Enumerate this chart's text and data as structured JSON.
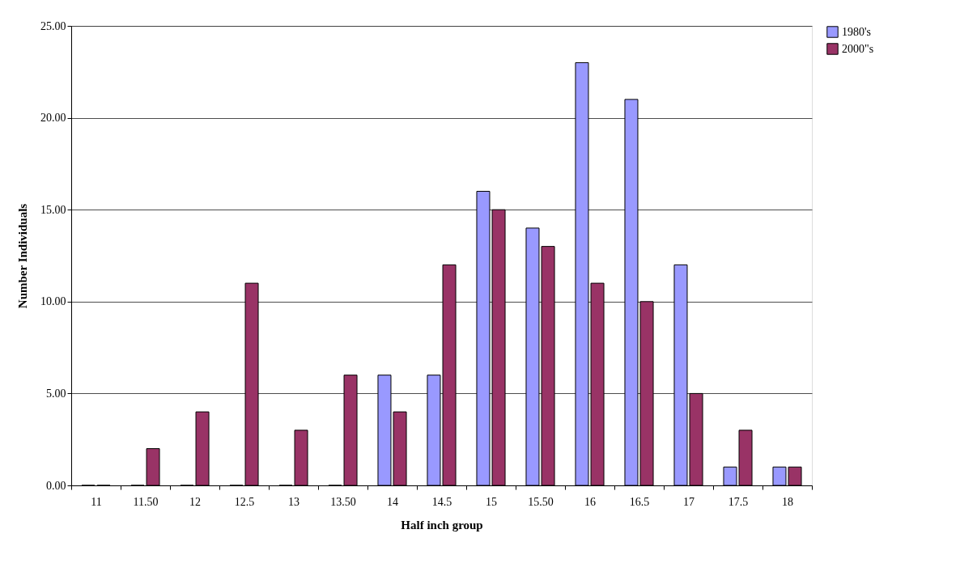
{
  "chart_data": {
    "type": "bar",
    "xlabel": "Half inch group",
    "ylabel": "Number Individuals",
    "categories": [
      "11",
      "11.50",
      "12",
      "12.5",
      "13",
      "13.50",
      "14",
      "14.5",
      "15",
      "15.50",
      "16",
      "16.5",
      "17",
      "17.5",
      "18"
    ],
    "series": [
      {
        "name": "1980's",
        "color": "#9999ff",
        "values": [
          0,
          0,
          0,
          0,
          0,
          0,
          6,
          6,
          16,
          14,
          23,
          21,
          12,
          1,
          1
        ]
      },
      {
        "name": "2000\"s",
        "color": "#993366",
        "values": [
          0,
          2,
          4,
          11,
          3,
          6,
          4,
          12,
          15,
          13,
          11,
          10,
          5,
          3,
          1
        ]
      }
    ],
    "ylim": [
      0,
      25
    ],
    "yticks": [
      {
        "value": 0,
        "label": "0.00"
      },
      {
        "value": 5,
        "label": "5.00"
      },
      {
        "value": 10,
        "label": "10.00"
      },
      {
        "value": 15,
        "label": "15.00"
      },
      {
        "value": 20,
        "label": "20.00"
      },
      {
        "value": 25,
        "label": "25.00"
      }
    ],
    "grid": "y",
    "legend": "right"
  }
}
